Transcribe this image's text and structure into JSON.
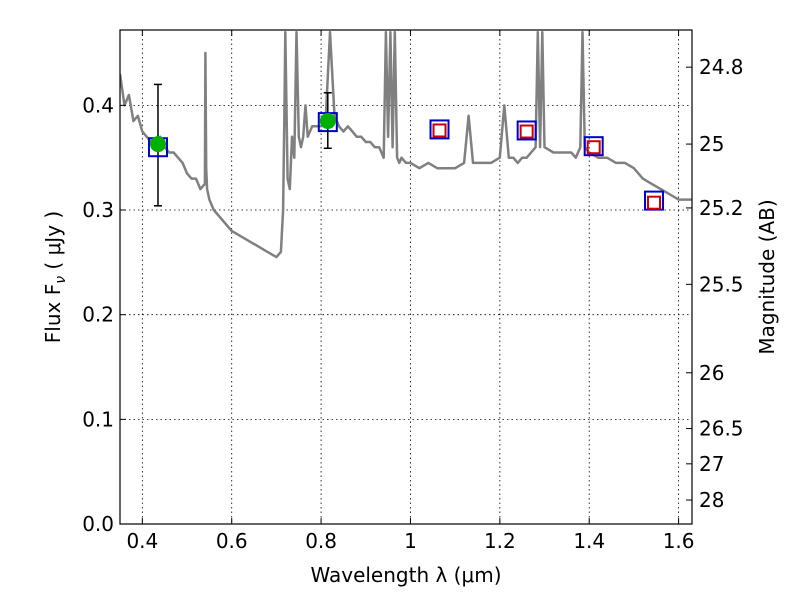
{
  "chart_data": {
    "type": "scatter",
    "title": "",
    "xlabel": "Wavelength  λ (μm)",
    "ylabel": "Flux  F",
    "ylabel_sub": "ν",
    "ylabel_unit": " ( μJy )",
    "y2label": "Magnitude (AB)",
    "xlim": [
      0.35,
      1.63
    ],
    "ylim": [
      0.0,
      0.472
    ],
    "grid": true,
    "x_ticks": [
      0.4,
      0.6,
      0.8,
      1.0,
      1.2,
      1.4,
      1.6
    ],
    "x_tick_labels": [
      "0.4",
      "0.6",
      "0.8",
      "1",
      "1.2",
      "1.4",
      "1.6"
    ],
    "y_ticks": [
      0.0,
      0.1,
      0.2,
      0.3,
      0.4
    ],
    "y_tick_labels": [
      "0.0",
      "0.1",
      "0.2",
      "0.3",
      "0.4"
    ],
    "y2_ticks": [
      {
        "label": "24.8",
        "flux": 0.4365
      },
      {
        "label": "25",
        "flux": 0.363
      },
      {
        "label": "25.2",
        "flux": 0.302
      },
      {
        "label": "25.5",
        "flux": 0.229
      },
      {
        "label": "26",
        "flux": 0.1445
      },
      {
        "label": "26.5",
        "flux": 0.0912
      },
      {
        "label": "27",
        "flux": 0.0575
      },
      {
        "label": "28",
        "flux": 0.0229
      }
    ],
    "series": [
      {
        "kind": "line",
        "color": "#808080",
        "x": [
          0.35,
          0.36,
          0.37,
          0.38,
          0.39,
          0.4,
          0.41,
          0.42,
          0.43,
          0.44,
          0.45,
          0.46,
          0.47,
          0.48,
          0.49,
          0.5,
          0.51,
          0.52,
          0.53,
          0.54,
          0.541,
          0.543,
          0.545,
          0.55,
          0.56,
          0.58,
          0.6,
          0.62,
          0.64,
          0.66,
          0.68,
          0.7,
          0.71,
          0.715,
          0.718,
          0.72,
          0.725,
          0.73,
          0.735,
          0.74,
          0.745,
          0.75,
          0.755,
          0.76,
          0.765,
          0.77,
          0.78,
          0.79,
          0.8,
          0.81,
          0.82,
          0.83,
          0.84,
          0.85,
          0.86,
          0.87,
          0.88,
          0.89,
          0.9,
          0.91,
          0.92,
          0.93,
          0.94,
          0.945,
          0.95,
          0.955,
          0.96,
          0.965,
          0.97,
          0.975,
          0.98,
          0.99,
          1.0,
          1.02,
          1.04,
          1.06,
          1.08,
          1.1,
          1.12,
          1.13,
          1.14,
          1.16,
          1.18,
          1.2,
          1.21,
          1.22,
          1.23,
          1.24,
          1.25,
          1.26,
          1.27,
          1.28,
          1.285,
          1.29,
          1.295,
          1.3,
          1.32,
          1.34,
          1.36,
          1.37,
          1.38,
          1.385,
          1.39,
          1.4,
          1.42,
          1.44,
          1.46,
          1.48,
          1.5,
          1.52,
          1.54,
          1.56,
          1.58,
          1.6,
          1.62,
          1.63
        ],
        "y": [
          0.43,
          0.4,
          0.41,
          0.385,
          0.39,
          0.375,
          0.37,
          0.365,
          0.36,
          0.37,
          0.36,
          0.355,
          0.355,
          0.35,
          0.345,
          0.335,
          0.33,
          0.33,
          0.32,
          0.325,
          0.45,
          0.34,
          0.32,
          0.31,
          0.3,
          0.29,
          0.28,
          0.275,
          0.27,
          0.265,
          0.26,
          0.255,
          0.26,
          0.3,
          0.4,
          0.47,
          0.33,
          0.32,
          0.37,
          0.35,
          0.47,
          0.37,
          0.36,
          0.37,
          0.4,
          0.37,
          0.38,
          0.38,
          0.38,
          0.385,
          0.47,
          0.39,
          0.38,
          0.375,
          0.38,
          0.375,
          0.37,
          0.37,
          0.365,
          0.365,
          0.36,
          0.36,
          0.35,
          0.47,
          0.37,
          0.47,
          0.36,
          0.47,
          0.35,
          0.345,
          0.35,
          0.345,
          0.345,
          0.34,
          0.345,
          0.34,
          0.34,
          0.34,
          0.345,
          0.39,
          0.345,
          0.345,
          0.345,
          0.35,
          0.4,
          0.35,
          0.35,
          0.345,
          0.35,
          0.35,
          0.355,
          0.36,
          0.47,
          0.36,
          0.47,
          0.36,
          0.355,
          0.355,
          0.355,
          0.35,
          0.36,
          0.47,
          0.36,
          0.355,
          0.35,
          0.35,
          0.345,
          0.345,
          0.34,
          0.33,
          0.325,
          0.32,
          0.315,
          0.31,
          0.31,
          0.31
        ]
      },
      {
        "kind": "errorbar",
        "color": "#00b000",
        "x": [
          0.435,
          0.815
        ],
        "y": [
          0.363,
          0.385
        ],
        "yerr_low": [
          0.059,
          0.026
        ],
        "yerr_high": [
          0.057,
          0.027
        ]
      },
      {
        "kind": "square-marker",
        "color": "#0000cc",
        "size": "large",
        "x": [
          0.435,
          0.815,
          1.065,
          1.26,
          1.41,
          1.545
        ],
        "y": [
          0.36,
          0.384,
          0.377,
          0.376,
          0.361,
          0.309
        ]
      },
      {
        "kind": "square-marker",
        "color": "#cc0000",
        "size": "small",
        "x": [
          1.065,
          1.26,
          1.41,
          1.545
        ],
        "y": [
          0.376,
          0.375,
          0.36,
          0.307
        ]
      }
    ]
  }
}
